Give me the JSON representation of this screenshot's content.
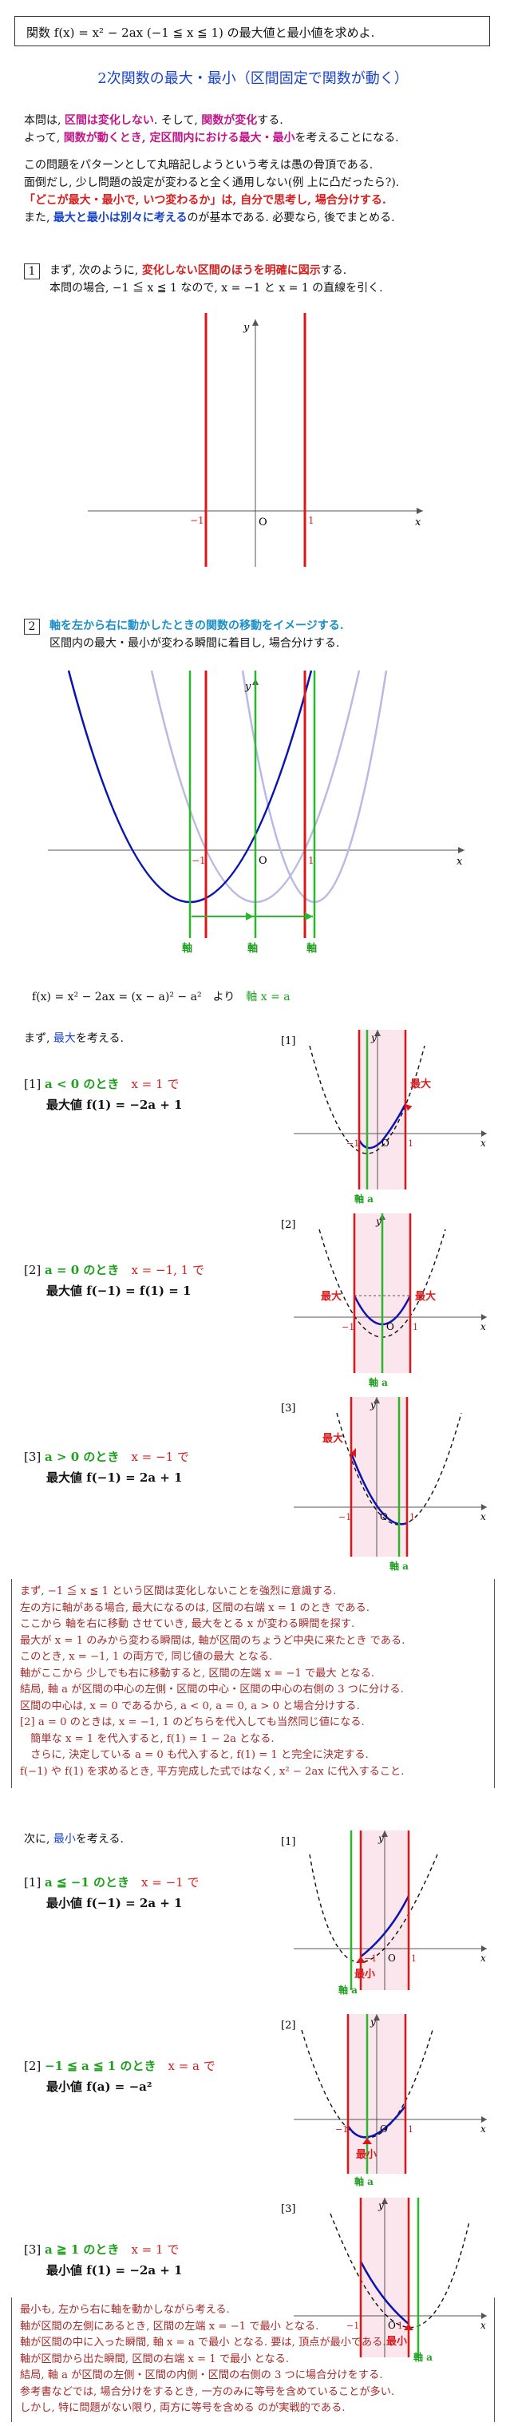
{
  "problem": "関数 f(x) = x² − 2ax (−1 ≦ x ≦ 1) の最大値と最小値を求めよ.",
  "title": "2次関数の最大・最小（区間固定で関数が動く）",
  "intro": {
    "l1a": "本問は, ",
    "l1b": "区間は変化しない",
    "l1c": ". そして, ",
    "l1d": "関数が変化",
    "l1e": "する.",
    "l2a": "よって, ",
    "l2b": "関数が動くとき, 定区間内における最大・最小",
    "l2c": "を考えることになる.",
    "l3": "この問題をパターンとして丸暗記しようという考えは愚の骨頂である.",
    "l4": "面倒だし, 少し問題の設定が変わると全く通用しない(例 上に凸だったら?).",
    "l5": "「どこが最大・最小で, いつ変わるか」は, 自分で思考し, 場合分けする.",
    "l6a": "また, ",
    "l6b": "最大と最小は別々に考える",
    "l6c": "のが基本である. 必要なら, 後でまとめる."
  },
  "step1": {
    "num": "1",
    "l1a": "まず, 次のように, ",
    "l1b": "変化しない区間のほうを明確に図示",
    "l1c": "する.",
    "l2": "本問の場合, −1 ≦ x ≦ 1 なので, x = −1 と x = 1 の直線を引く."
  },
  "step2": {
    "num": "2",
    "l1": "軸を左から右に動かしたときの関数の移動をイメージする.",
    "l2": "区間内の最大・最小が変わる瞬間に着目し, 場合分けする."
  },
  "axis_labels": {
    "x": "x",
    "y": "y",
    "o": "O",
    "m1": "−1",
    "p1": "1",
    "jiku": "軸",
    "jiku_a": "軸 a"
  },
  "formula": {
    "a": "f(x) = x² − 2ax = (x − a)² − a²",
    "b": "より",
    "c": "軸 x = a"
  },
  "max": {
    "head_a": "まず, ",
    "head_b": "最大",
    "head_c": "を考える.",
    "cases": [
      {
        "tag": "[1]",
        "cond": "a < 0 のとき",
        "at": "x = 1 で",
        "result": "最大値 f(1) = −2a + 1"
      },
      {
        "tag": "[2]",
        "cond": "a = 0 のとき",
        "at": "x = −1, 1 で",
        "result": "最大値 f(−1) = f(1) = 1"
      },
      {
        "tag": "[3]",
        "cond": "a > 0 のとき",
        "at": "x = −1 で",
        "result": "最大値 f(−1) = 2a + 1"
      }
    ],
    "mark": "最大"
  },
  "note1": [
    "まず, −1 ≦ x ≦ 1 という区間は変化しないことを強烈に意識する.",
    "左の方に軸がある場合, 最大になるのは, 区間の右端 x = 1 のとき である.",
    "ここから 軸を右に移動 させていき, 最大をとる x が変わる瞬間を探す.",
    "最大が x = 1 のみから変わる瞬間は, 軸が区間のちょうど中央に来たとき である.",
    "このとき, x = −1, 1 の両方で, 同じ値の最大 となる.",
    "軸がここから 少しでも右に移動すると, 区間の左端 x = −1 で最大 となる.",
    "結局, 軸 a が区間の中心の左側・区間の中心・区間の中心の右側の 3 つに分ける.",
    "区間の中心は, x = 0 であるから, a < 0, a = 0, a > 0 と場合分けする.",
    "[2] a = 0 のときは, x = −1, 1 のどちらを代入しても当然同じ値になる.",
    "　簡単な x = 1 を代入すると, f(1) = 1 − 2a となる.",
    "　さらに, 決定している a = 0 も代入すると, f(1) = 1 と完全に決定する.",
    "f(−1) や f(1) を求めるとき, 平方完成した式ではなく, x² − 2ax に代入すること."
  ],
  "min": {
    "head_a": "次に, ",
    "head_b": "最小",
    "head_c": "を考える.",
    "cases": [
      {
        "tag": "[1]",
        "cond": "a ≦ −1 のとき",
        "at": "x = −1 で",
        "result": "最小値 f(−1) = 2a + 1"
      },
      {
        "tag": "[2]",
        "cond": "−1 ≦ a ≦ 1 のとき",
        "at": "x = a で",
        "result": "最小値 f(a) = −a²"
      },
      {
        "tag": "[3]",
        "cond": "a ≧ 1 のとき",
        "at": "x = 1 で",
        "result": "最小値 f(1) = −2a + 1"
      }
    ],
    "mark": "最小"
  },
  "note2": [
    "最小も, 左から右に軸を動かしながら考える.",
    "軸が区間の左側にあるとき, 区間の左端 x = −1 で最小 となる.",
    "軸が区間の中に入った瞬間, 軸 x = a で最小 となる. 要は, 頂点が最小である.",
    "軸が区間から出た瞬間, 区間の右端 x = 1 で最小 となる.",
    "結局, 軸 a が区間の左側・区間の内側・区間の右側の 3 つに場合分けをする.",
    "参考書などでは, 場合分けをするとき, 一方のみに等号を含めていることが多い.",
    "しかし, 特に問題がない限り, 両方に等号を含める のが実戦的である."
  ],
  "colors": {
    "accent_blue": "#1a44c8",
    "red": "#d61e1e",
    "magenta": "#c0168a",
    "green": "#1ea01e",
    "note": "#a52a2a"
  }
}
